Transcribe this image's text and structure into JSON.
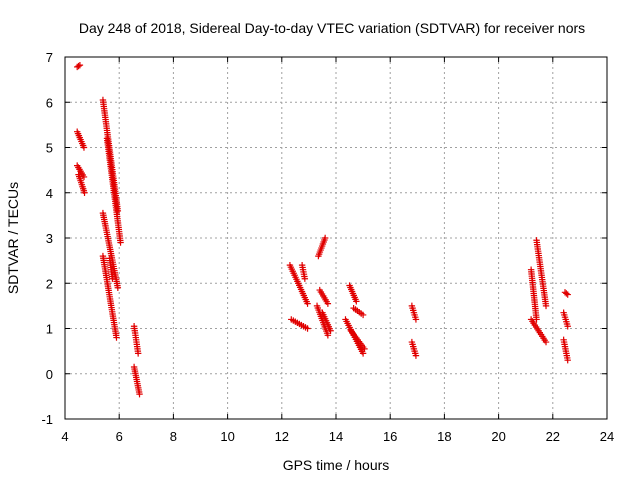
{
  "chart_data": {
    "type": "scatter",
    "title": "Day 248 of 2018, Sidereal Day-to-day VTEC variation (SDTVAR) for receiver nors",
    "xlabel": "GPS time / hours",
    "ylabel": "SDTVAR / TECUs",
    "xlim": [
      4,
      24
    ],
    "ylim": [
      -1,
      7
    ],
    "xticks": [
      4,
      6,
      8,
      10,
      12,
      14,
      16,
      18,
      20,
      22,
      24
    ],
    "yticks": [
      -1,
      0,
      1,
      2,
      3,
      4,
      5,
      6,
      7
    ],
    "grid": true,
    "marker": "+",
    "marker_color": "#e00000",
    "series": [
      {
        "name": "SDTVAR",
        "segments": [
          {
            "x": [
              4.45,
              4.55
            ],
            "y": [
              6.78,
              6.82
            ]
          },
          {
            "x": [
              4.45,
              4.7
            ],
            "y": [
              5.35,
              5.0
            ]
          },
          {
            "x": [
              4.45,
              4.7
            ],
            "y": [
              4.6,
              4.35
            ]
          },
          {
            "x": [
              4.5,
              4.72
            ],
            "y": [
              4.4,
              4.0
            ]
          },
          {
            "x": [
              5.4,
              5.95
            ],
            "y": [
              6.05,
              3.6
            ]
          },
          {
            "x": [
              5.55,
              6.05
            ],
            "y": [
              5.2,
              2.9
            ]
          },
          {
            "x": [
              5.4,
              5.95
            ],
            "y": [
              3.55,
              1.9
            ]
          },
          {
            "x": [
              5.4,
              5.9
            ],
            "y": [
              2.6,
              0.8
            ]
          },
          {
            "x": [
              5.65,
              5.75
            ],
            "y": [
              2.55,
              2.1
            ]
          },
          {
            "x": [
              6.55,
              6.7
            ],
            "y": [
              1.05,
              0.45
            ]
          },
          {
            "x": [
              6.55,
              6.75
            ],
            "y": [
              0.15,
              -0.45
            ]
          },
          {
            "x": [
              12.3,
              12.95
            ],
            "y": [
              2.4,
              1.55
            ]
          },
          {
            "x": [
              12.75,
              12.85
            ],
            "y": [
              2.4,
              2.1
            ]
          },
          {
            "x": [
              12.35,
              12.95
            ],
            "y": [
              1.2,
              1.0
            ]
          },
          {
            "x": [
              13.35,
              13.6
            ],
            "y": [
              2.6,
              3.0
            ]
          },
          {
            "x": [
              13.4,
              13.7
            ],
            "y": [
              1.85,
              1.55
            ]
          },
          {
            "x": [
              13.3,
              13.7
            ],
            "y": [
              1.5,
              0.85
            ]
          },
          {
            "x": [
              13.5,
              13.8
            ],
            "y": [
              1.35,
              0.95
            ]
          },
          {
            "x": [
              14.5,
              14.75
            ],
            "y": [
              1.95,
              1.6
            ]
          },
          {
            "x": [
              14.35,
              15.0
            ],
            "y": [
              1.2,
              0.45
            ]
          },
          {
            "x": [
              14.55,
              15.05
            ],
            "y": [
              0.95,
              0.55
            ]
          },
          {
            "x": [
              14.65,
              15.0
            ],
            "y": [
              1.45,
              1.3
            ]
          },
          {
            "x": [
              16.8,
              16.95
            ],
            "y": [
              1.5,
              1.2
            ]
          },
          {
            "x": [
              16.8,
              16.95
            ],
            "y": [
              0.7,
              0.4
            ]
          },
          {
            "x": [
              21.2,
              21.4
            ],
            "y": [
              2.3,
              1.2
            ]
          },
          {
            "x": [
              21.4,
              21.75
            ],
            "y": [
              2.95,
              1.5
            ]
          },
          {
            "x": [
              21.2,
              21.75
            ],
            "y": [
              1.2,
              0.7
            ]
          },
          {
            "x": [
              22.45,
              22.55
            ],
            "y": [
              1.8,
              1.75
            ]
          },
          {
            "x": [
              22.4,
              22.55
            ],
            "y": [
              1.35,
              1.05
            ]
          },
          {
            "x": [
              22.4,
              22.55
            ],
            "y": [
              0.75,
              0.3
            ]
          }
        ]
      }
    ]
  }
}
